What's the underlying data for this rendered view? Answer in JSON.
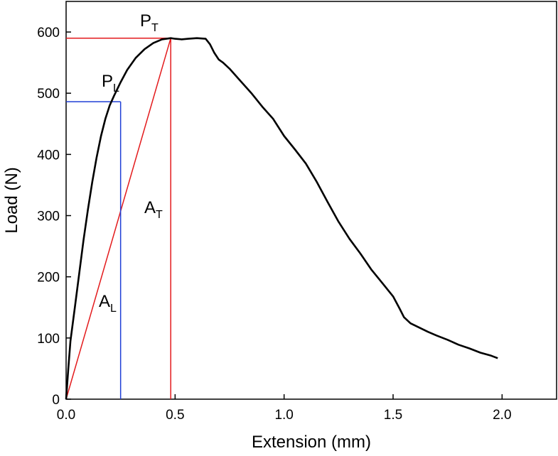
{
  "chart_data": {
    "type": "line",
    "xlabel": "Extension (mm)",
    "ylabel": "Load (N)",
    "xlim": [
      0,
      2.25
    ],
    "ylim": [
      0,
      650
    ],
    "x_ticks": [
      "0.0",
      "0.5",
      "1.0",
      "1.5",
      "2.0"
    ],
    "y_ticks": [
      "0",
      "100",
      "200",
      "300",
      "400",
      "500",
      "600"
    ],
    "grid": false,
    "colors": {
      "curve": "#000000",
      "red": "#e31a1c",
      "blue": "#1f3fd6"
    },
    "series": [
      {
        "x": [
          0,
          0.01,
          0.02,
          0.04,
          0.06,
          0.08,
          0.1,
          0.12,
          0.14,
          0.16,
          0.18,
          0.2,
          0.22,
          0.25,
          0.28,
          0.32,
          0.36,
          0.4,
          0.44,
          0.48,
          0.5,
          0.53,
          0.56,
          0.6,
          0.64,
          0.66,
          0.68,
          0.7,
          0.72,
          0.75,
          0.8,
          0.85,
          0.9,
          0.95,
          1.0,
          1.05,
          1.1,
          1.15,
          1.2,
          1.25,
          1.3,
          1.35,
          1.4,
          1.45,
          1.5,
          1.53,
          1.55,
          1.58,
          1.62,
          1.66,
          1.7,
          1.75,
          1.8,
          1.85,
          1.9,
          1.95,
          1.98
        ],
        "y": [
          0,
          50,
          95,
          150,
          205,
          260,
          310,
          355,
          395,
          430,
          458,
          480,
          496,
          518,
          538,
          558,
          572,
          582,
          588,
          590,
          589,
          588,
          589,
          590,
          589,
          580,
          566,
          555,
          550,
          540,
          520,
          500,
          478,
          458,
          430,
          408,
          385,
          355,
          322,
          290,
          262,
          238,
          212,
          190,
          168,
          148,
          134,
          124,
          117,
          110,
          104,
          97,
          89,
          83,
          76,
          71,
          67
        ]
      }
    ],
    "annotations": {
      "PT": {
        "letter": "P",
        "sub": "T",
        "x": 0.48,
        "y": 590
      },
      "PL": {
        "letter": "P",
        "sub": "L",
        "x": 0.25,
        "y": 486
      },
      "AT": {
        "letter": "A",
        "sub": "T"
      },
      "AL": {
        "letter": "A",
        "sub": "L"
      }
    }
  }
}
